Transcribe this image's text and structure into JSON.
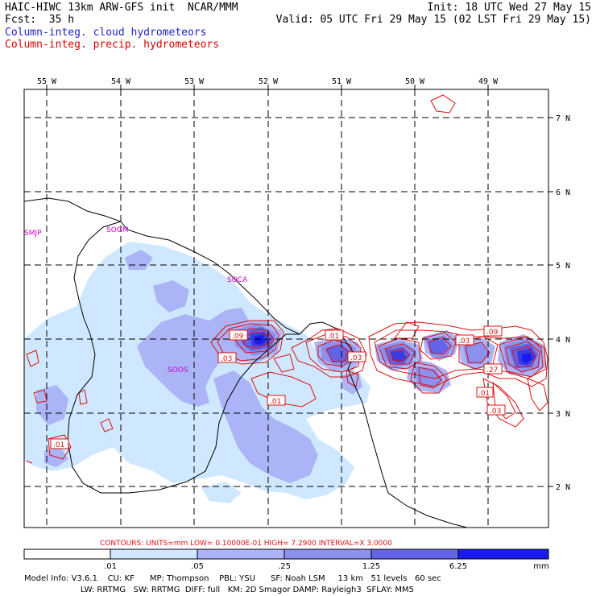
{
  "header": {
    "line1_left": "HAIC-HIWC 13km ARW-GFS init  NCAR/MMM",
    "line2_left": "Fcst:  35 h",
    "line1_right": "Init: 18 UTC Wed 27 May 15",
    "line2_right": "Valid: 05 UTC Fri 29 May 15 (02 LST Fri 29 May 15)",
    "cloud_label": "Column-integ. cloud hydrometeors",
    "precip_label": "Column-integ. precip. hydrometeors"
  },
  "colors": {
    "cloud_text": "#2222cc",
    "precip_text": "#dd0000",
    "contour": "#dd1111",
    "fill_1": "#cfe8ff",
    "fill_2": "#aab4f6",
    "fill_3": "#8c90ee",
    "fill_4": "#6464e8",
    "fill_5": "#3a3ae0",
    "fill_6": "#1a1aee",
    "station": "#cc00cc"
  },
  "map": {
    "lon_labels": [
      "55 W",
      "54 W",
      "53 W",
      "52 W",
      "51 W",
      "50 W",
      "49 W"
    ],
    "lat_labels": [
      "7 N",
      "6 N",
      "5 N",
      "4 N",
      "3 N",
      "2 N"
    ],
    "stations": [
      "SMJP",
      "SOGM",
      "SOCA",
      "SOOS"
    ],
    "contour_labels": [
      ".09",
      ".03",
      ".01",
      ".03",
      ".03",
      ".09",
      ".27",
      ".01",
      ".03",
      ".01",
      ".01"
    ]
  },
  "footer": {
    "contours_line": "CONTOURS:  UNITS=mm  LOW= 0.10000E-01  HIGH=  7.2900     INTERVAL=X  3.0000",
    "scale_labels": [
      ".01",
      ".05",
      ".25",
      "1.25",
      "6.25"
    ],
    "units": "mm",
    "model_line1": "Model Info: V3.6.1    CU: KF      MP: Thompson    PBL: YSU      SF: Noah LSM     13 km   51 levels   60 sec",
    "model_line2": "                      LW: RRTMG   SW: RRTMG  DIFF: full   KM: 2D Smagor DAMP: Rayleigh3  SFLAY: MM5"
  }
}
